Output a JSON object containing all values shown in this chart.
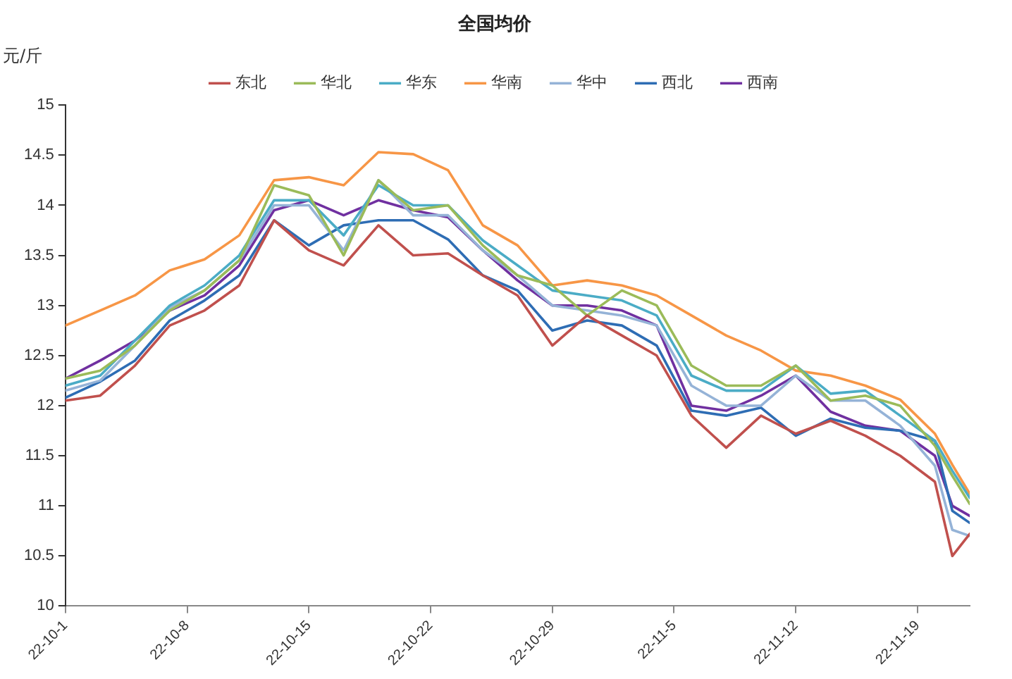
{
  "chart_data": {
    "type": "line",
    "title": "全国均价",
    "ylabel": "元/斤",
    "x": [
      "--10-01",
      "--10-03",
      "--10-05",
      "--10-07",
      "--10-09",
      "--10-11",
      "--10-13",
      "--10-15",
      "--10-17",
      "--10-19",
      "--10-21",
      "--10-23",
      "--10-25",
      "--10-27",
      "--10-29",
      "--10-31",
      "--11-02",
      "--11-04",
      "--11-06",
      "--11-08",
      "--11-10",
      "--11-12",
      "--11-14",
      "--11-16",
      "--11-18",
      "--11-20",
      "--11-21",
      "--11-22"
    ],
    "series": [
      {
        "name": "东北",
        "color": "#c0504d",
        "values": [
          12.05,
          12.1,
          12.4,
          12.8,
          12.95,
          13.2,
          13.85,
          13.55,
          13.4,
          13.8,
          13.5,
          13.52,
          13.3,
          13.1,
          12.6,
          12.9,
          12.7,
          12.5,
          11.9,
          11.58,
          11.9,
          11.72,
          11.85,
          11.7,
          11.5,
          11.24,
          10.5,
          10.72
        ]
      },
      {
        "name": "华北",
        "color": "#9bbb59",
        "values": [
          12.27,
          12.35,
          12.6,
          12.95,
          13.15,
          13.45,
          14.2,
          14.1,
          13.5,
          14.25,
          13.95,
          14.0,
          13.6,
          13.3,
          13.2,
          12.9,
          13.15,
          13.0,
          12.4,
          12.2,
          12.2,
          12.4,
          12.05,
          12.1,
          12.0,
          11.6,
          11.3,
          11.02
        ]
      },
      {
        "name": "华东",
        "color": "#4bacc6",
        "values": [
          12.2,
          12.3,
          12.65,
          13.0,
          13.2,
          13.5,
          14.05,
          14.05,
          13.7,
          14.2,
          14.0,
          14.0,
          13.65,
          13.4,
          13.15,
          13.1,
          13.05,
          12.9,
          12.3,
          12.15,
          12.15,
          12.4,
          12.12,
          12.15,
          11.9,
          11.65,
          11.35,
          11.08
        ]
      },
      {
        "name": "华南",
        "color": "#f79646",
        "values": [
          12.8,
          12.95,
          13.1,
          13.35,
          13.46,
          13.7,
          14.25,
          14.28,
          14.2,
          14.53,
          14.51,
          14.35,
          13.8,
          13.6,
          13.2,
          13.25,
          13.2,
          13.1,
          12.9,
          12.7,
          12.55,
          12.35,
          12.3,
          12.2,
          12.06,
          11.72,
          11.41,
          11.12
        ]
      },
      {
        "name": "华中",
        "color": "#95b3d7",
        "values": [
          12.15,
          12.25,
          12.6,
          12.98,
          13.15,
          13.45,
          14.0,
          14.0,
          13.55,
          14.25,
          13.9,
          13.9,
          13.55,
          13.3,
          13.0,
          12.95,
          12.9,
          12.8,
          12.2,
          12.0,
          12.0,
          12.3,
          12.05,
          12.05,
          11.8,
          11.4,
          10.76,
          10.7
        ]
      },
      {
        "name": "西北",
        "color": "#2e6db4",
        "values": [
          12.08,
          12.24,
          12.45,
          12.85,
          13.05,
          13.3,
          13.85,
          13.6,
          13.8,
          13.85,
          13.85,
          13.66,
          13.3,
          13.15,
          12.75,
          12.85,
          12.8,
          12.6,
          11.95,
          11.9,
          11.98,
          11.7,
          11.87,
          11.78,
          11.75,
          11.65,
          10.95,
          10.83
        ]
      },
      {
        "name": "西南",
        "color": "#7030a0",
        "values": [
          12.27,
          12.45,
          12.65,
          12.95,
          13.1,
          13.4,
          13.95,
          14.05,
          13.9,
          14.05,
          13.95,
          13.88,
          13.55,
          13.25,
          13.0,
          13.0,
          12.95,
          12.8,
          12.0,
          11.95,
          12.1,
          12.3,
          11.94,
          11.8,
          11.75,
          11.5,
          11.0,
          10.9
        ]
      }
    ],
    "xlim": [
      "--10-01",
      "--11-22"
    ],
    "xticks": [
      {
        "value": "--10-01",
        "label": "22-10-1"
      },
      {
        "value": "--10-08",
        "label": "22-10-8"
      },
      {
        "value": "--10-15",
        "label": "22-10-15"
      },
      {
        "value": "--10-22",
        "label": "22-10-22"
      },
      {
        "value": "--10-29",
        "label": "22-10-29"
      },
      {
        "value": "--11-05",
        "label": "22-11-5"
      },
      {
        "value": "--11-12",
        "label": "22-11-12"
      },
      {
        "value": "--11-19",
        "label": "22-11-19"
      }
    ],
    "ylim": [
      10,
      15
    ],
    "yticks": [
      10,
      10.5,
      11,
      11.5,
      12,
      12.5,
      13,
      13.5,
      14,
      14.5,
      15
    ],
    "grid": false,
    "legend": "top",
    "marker": "none",
    "line_style": "solid"
  }
}
